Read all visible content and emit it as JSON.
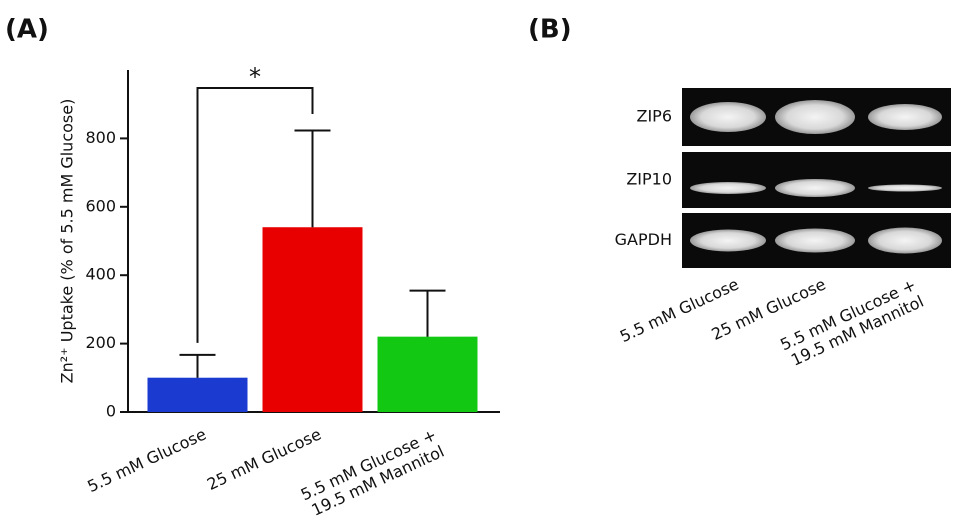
{
  "chart_data": [
    {
      "type": "bar",
      "panel_label": "(A)",
      "y_label": "Zn²⁺ Uptake (% of 5.5 mM Glucose)",
      "categories": [
        "5.5 mM Glucose",
        "25 mM Glucose",
        "5.5 mM Glucose +\n19.5 mM Mannitol"
      ],
      "values": [
        100,
        540,
        220
      ],
      "errors": [
        67,
        283,
        135
      ],
      "colors": [
        "#1b3ad0",
        "#e80000",
        "#12c812"
      ],
      "ylim": [
        0,
        1000
      ],
      "yticks": [
        0,
        200,
        400,
        600,
        800
      ],
      "annotations": [
        {
          "text": "*"
        }
      ]
    },
    {
      "type": "gel",
      "panel_label": "(B)",
      "rows": [
        "ZIP6",
        "ZIP10",
        "GAPDH"
      ],
      "lanes": [
        "5.5 mM Glucose",
        "25 mM Glucose",
        "5.5 mM Glucose +\n19.5 mM Mannitol"
      ]
    }
  ]
}
